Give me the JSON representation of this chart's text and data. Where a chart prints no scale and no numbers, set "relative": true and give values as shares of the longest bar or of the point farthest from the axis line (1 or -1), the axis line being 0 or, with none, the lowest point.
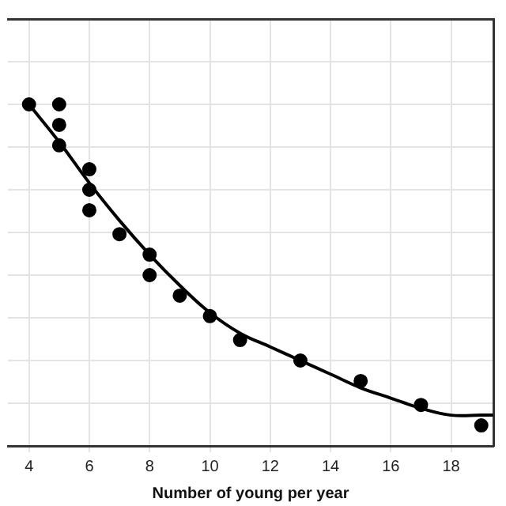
{
  "chart_data": {
    "type": "scatter",
    "xlabel": "Number of young per year",
    "relative": true,
    "xlim": [
      3.3,
      19.4
    ],
    "xticks": [
      4,
      6,
      8,
      10,
      12,
      14,
      16,
      18
    ],
    "grid": true,
    "legend": false,
    "marker": "circle",
    "tick_labels": "x",
    "series": [
      {
        "color": "#000000",
        "x": [
          4,
          5,
          5,
          5,
          6,
          6,
          6,
          7,
          8,
          8,
          9,
          10,
          11,
          13,
          15,
          17,
          19
        ],
        "values": [
          1,
          1,
          0.94,
          0.88,
          0.81,
          0.75,
          0.69,
          0.62,
          0.56,
          0.5,
          0.44,
          0.38,
          0.31,
          0.25,
          0.19,
          0.12,
          0.06
        ]
      },
      {
        "type": "line",
        "color": "#000000",
        "marker": "none",
        "line_style": "solid",
        "x": [
          4,
          5,
          6,
          7,
          8,
          9,
          10,
          11,
          12,
          13,
          14,
          15,
          16,
          17,
          18,
          19,
          19.4
        ],
        "values": [
          1,
          0.89,
          0.77,
          0.66,
          0.56,
          0.47,
          0.39,
          0.33,
          0.29,
          0.25,
          0.21,
          0.17,
          0.14,
          0.11,
          0.09,
          0.09,
          0.09
        ]
      }
    ]
  }
}
